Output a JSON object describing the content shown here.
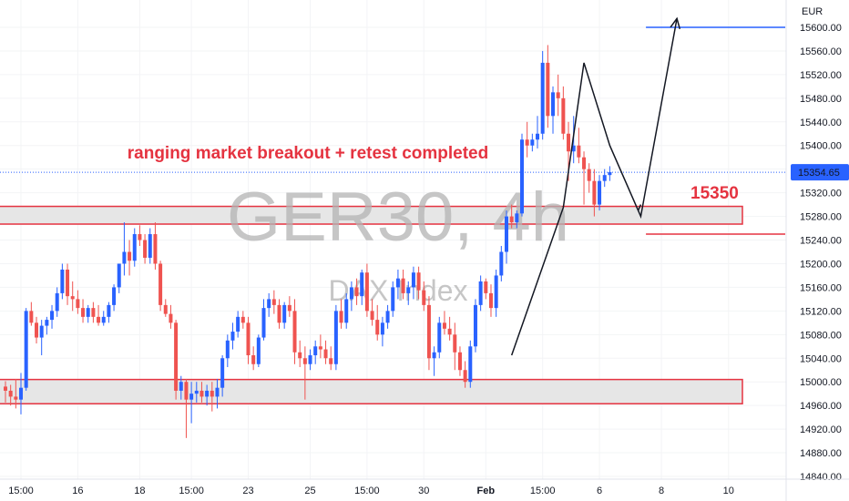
{
  "chart_data": {
    "type": "candlestick",
    "symbol_watermark": "GER30, 4h",
    "subtitle_watermark": "DAX Index",
    "currency": "EUR",
    "current_price": "15354.65",
    "ylim": [
      14830,
      15625
    ],
    "y_ticks": [
      "15600.00",
      "15560.00",
      "15520.00",
      "15480.00",
      "15440.00",
      "15400.00",
      "15360.00",
      "15320.00",
      "15280.00",
      "15240.00",
      "15200.00",
      "15160.00",
      "15120.00",
      "15080.00",
      "15040.00",
      "15000.00",
      "14960.00",
      "14920.00",
      "14880.00",
      "14840.00"
    ],
    "x_ticks": [
      {
        "label": "15:00",
        "bar": 3,
        "bold": false
      },
      {
        "label": "16",
        "bar": 14,
        "bold": false
      },
      {
        "label": "18",
        "bar": 26,
        "bold": false
      },
      {
        "label": "15:00",
        "bar": 36,
        "bold": false
      },
      {
        "label": "23",
        "bar": 47,
        "bold": false
      },
      {
        "label": "25",
        "bar": 59,
        "bold": false
      },
      {
        "label": "15:00",
        "bar": 70,
        "bold": false
      },
      {
        "label": "30",
        "bar": 81,
        "bold": false
      },
      {
        "label": "Feb",
        "bar": 93,
        "bold": true
      },
      {
        "label": "15:00",
        "bar": 104,
        "bold": false
      },
      {
        "label": "6",
        "bar": 115,
        "bold": false
      },
      {
        "label": "8",
        "bar": 127,
        "bold": false
      },
      {
        "label": "10",
        "bar": 140,
        "bold": false
      }
    ],
    "candles": [
      [
        14992,
        15001,
        14965,
        14985
      ],
      [
        14985,
        14995,
        14960,
        14975
      ],
      [
        14975,
        15005,
        14955,
        14970
      ],
      [
        14970,
        15015,
        14945,
        14990
      ],
      [
        14990,
        15125,
        14985,
        15120
      ],
      [
        15120,
        15135,
        15095,
        15100
      ],
      [
        15100,
        15110,
        15065,
        15075
      ],
      [
        15075,
        15105,
        15045,
        15095
      ],
      [
        15095,
        15110,
        15080,
        15105
      ],
      [
        15105,
        15130,
        15090,
        15120
      ],
      [
        15120,
        15160,
        15110,
        15150
      ],
      [
        15150,
        15200,
        15140,
        15190
      ],
      [
        15190,
        15200,
        15130,
        15145
      ],
      [
        15145,
        15170,
        15120,
        15140
      ],
      [
        15140,
        15155,
        15115,
        15125
      ],
      [
        15125,
        15140,
        15100,
        15110
      ],
      [
        15110,
        15130,
        15100,
        15125
      ],
      [
        15125,
        15135,
        15100,
        15110
      ],
      [
        15110,
        15130,
        15095,
        15100
      ],
      [
        15100,
        15120,
        15095,
        15110
      ],
      [
        15110,
        15135,
        15100,
        15130
      ],
      [
        15130,
        15165,
        15120,
        15160
      ],
      [
        15160,
        15200,
        15150,
        15200
      ],
      [
        15200,
        15270,
        15180,
        15220
      ],
      [
        15220,
        15240,
        15180,
        15205
      ],
      [
        15205,
        15260,
        15195,
        15250
      ],
      [
        15250,
        15265,
        15230,
        15240
      ],
      [
        15240,
        15250,
        15200,
        15210
      ],
      [
        15210,
        15260,
        15200,
        15250
      ],
      [
        15250,
        15270,
        15190,
        15200
      ],
      [
        15200,
        15205,
        15120,
        15130
      ],
      [
        15130,
        15140,
        15110,
        15115
      ],
      [
        15115,
        15130,
        15090,
        15100
      ],
      [
        15100,
        15105,
        14970,
        14985
      ],
      [
        14985,
        15010,
        14970,
        15000
      ],
      [
        15000,
        15005,
        14905,
        14970
      ],
      [
        14970,
        15000,
        14930,
        14980
      ],
      [
        14980,
        15000,
        14965,
        14985
      ],
      [
        14985,
        15000,
        14965,
        14975
      ],
      [
        14975,
        14995,
        14960,
        14985
      ],
      [
        14985,
        15000,
        14950,
        14975
      ],
      [
        14975,
        15005,
        14955,
        14990
      ],
      [
        14990,
        15045,
        14975,
        15040
      ],
      [
        15040,
        15080,
        15025,
        15070
      ],
      [
        15070,
        15100,
        15055,
        15085
      ],
      [
        15085,
        15120,
        15075,
        15110
      ],
      [
        15110,
        15120,
        15090,
        15100
      ],
      [
        15100,
        15110,
        15030,
        15045
      ],
      [
        15045,
        15060,
        15020,
        15030
      ],
      [
        15030,
        15080,
        15025,
        15075
      ],
      [
        15075,
        15140,
        15070,
        15125
      ],
      [
        15125,
        15150,
        15110,
        15140
      ],
      [
        15140,
        15155,
        15115,
        15130
      ],
      [
        15130,
        15140,
        15090,
        15100
      ],
      [
        15100,
        15135,
        15090,
        15130
      ],
      [
        15130,
        15145,
        15110,
        15120
      ],
      [
        15120,
        15140,
        15030,
        15050
      ],
      [
        15050,
        15070,
        15025,
        15040
      ],
      [
        15040,
        15060,
        14970,
        15030
      ],
      [
        15030,
        15055,
        15020,
        15045
      ],
      [
        15045,
        15070,
        15030,
        15060
      ],
      [
        15060,
        15080,
        15040,
        15055
      ],
      [
        15055,
        15070,
        15030,
        15040
      ],
      [
        15040,
        15060,
        15020,
        15030
      ],
      [
        15030,
        15130,
        15020,
        15120
      ],
      [
        15120,
        15140,
        15090,
        15100
      ],
      [
        15100,
        15150,
        15090,
        15140
      ],
      [
        15140,
        15170,
        15120,
        15160
      ],
      [
        15160,
        15175,
        15130,
        15145
      ],
      [
        15145,
        15190,
        15130,
        15185
      ],
      [
        15185,
        15200,
        15110,
        15120
      ],
      [
        15120,
        15140,
        15095,
        15105
      ],
      [
        15105,
        15130,
        15070,
        15080
      ],
      [
        15080,
        15110,
        15060,
        15100
      ],
      [
        15100,
        15130,
        15090,
        15120
      ],
      [
        15120,
        15170,
        15110,
        15160
      ],
      [
        15160,
        15190,
        15140,
        15175
      ],
      [
        15175,
        15190,
        15140,
        15150
      ],
      [
        15150,
        15170,
        15130,
        15160
      ],
      [
        15160,
        15195,
        15140,
        15185
      ],
      [
        15185,
        15195,
        15140,
        15155
      ],
      [
        15155,
        15170,
        15120,
        15130
      ],
      [
        15130,
        15145,
        15020,
        15040
      ],
      [
        15040,
        15060,
        15010,
        15050
      ],
      [
        15050,
        15110,
        15040,
        15100
      ],
      [
        15100,
        15120,
        15080,
        15090
      ],
      [
        15090,
        15110,
        15070,
        15080
      ],
      [
        15080,
        15100,
        15020,
        15050
      ],
      [
        15050,
        15060,
        15010,
        15020
      ],
      [
        15020,
        15035,
        14990,
        15000
      ],
      [
        15000,
        15070,
        14990,
        15060
      ],
      [
        15060,
        15140,
        15050,
        15130
      ],
      [
        15130,
        15180,
        15120,
        15170
      ],
      [
        15170,
        15175,
        15140,
        15150
      ],
      [
        15150,
        15165,
        15110,
        15125
      ],
      [
        15125,
        15190,
        15110,
        15180
      ],
      [
        15180,
        15230,
        15170,
        15220
      ],
      [
        15220,
        15290,
        15200,
        15280
      ],
      [
        15280,
        15300,
        15260,
        15270
      ],
      [
        15270,
        15290,
        15260,
        15285
      ],
      [
        15285,
        15420,
        15280,
        15410
      ],
      [
        15410,
        15440,
        15380,
        15400
      ],
      [
        15400,
        15420,
        15390,
        15410
      ],
      [
        15410,
        15450,
        15395,
        15420
      ],
      [
        15420,
        15560,
        15410,
        15540
      ],
      [
        15540,
        15570,
        15430,
        15450
      ],
      [
        15450,
        15500,
        15420,
        15490
      ],
      [
        15490,
        15520,
        15450,
        15480
      ],
      [
        15480,
        15500,
        15410,
        15420
      ],
      [
        15420,
        15440,
        15340,
        15390
      ],
      [
        15390,
        15450,
        15370,
        15400
      ],
      [
        15400,
        15430,
        15370,
        15380
      ],
      [
        15380,
        15390,
        15300,
        15360
      ],
      [
        15360,
        15370,
        15320,
        15340
      ],
      [
        15340,
        15360,
        15280,
        15300
      ],
      [
        15300,
        15350,
        15290,
        15340
      ],
      [
        15340,
        15360,
        15330,
        15350
      ],
      [
        15350,
        15365,
        15340,
        15355
      ]
    ],
    "zones": [
      {
        "top": 15297,
        "bottom": 15267
      },
      {
        "top": 15004,
        "bottom": 14963
      }
    ],
    "hlines": [
      {
        "price": 15600,
        "color": "#2962ff",
        "x_start_bar": 124
      },
      {
        "price": 15250,
        "color": "#e53340",
        "x_start_bar": 124
      }
    ],
    "path_lines": [
      {
        "points": [
          [
            98,
            15045
          ],
          [
            108,
            15295
          ],
          [
            112,
            15540
          ],
          [
            117,
            15400
          ],
          [
            123,
            15280
          ],
          [
            130,
            15615
          ]
        ],
        "arrow_end": true
      },
      {
        "points": [
          [
            122.5,
            15290
          ],
          [
            123,
            15300
          ]
        ],
        "arrow_end": false
      }
    ],
    "annotation_text": "ranging market breakout + retest completed",
    "level_label": "15350"
  }
}
